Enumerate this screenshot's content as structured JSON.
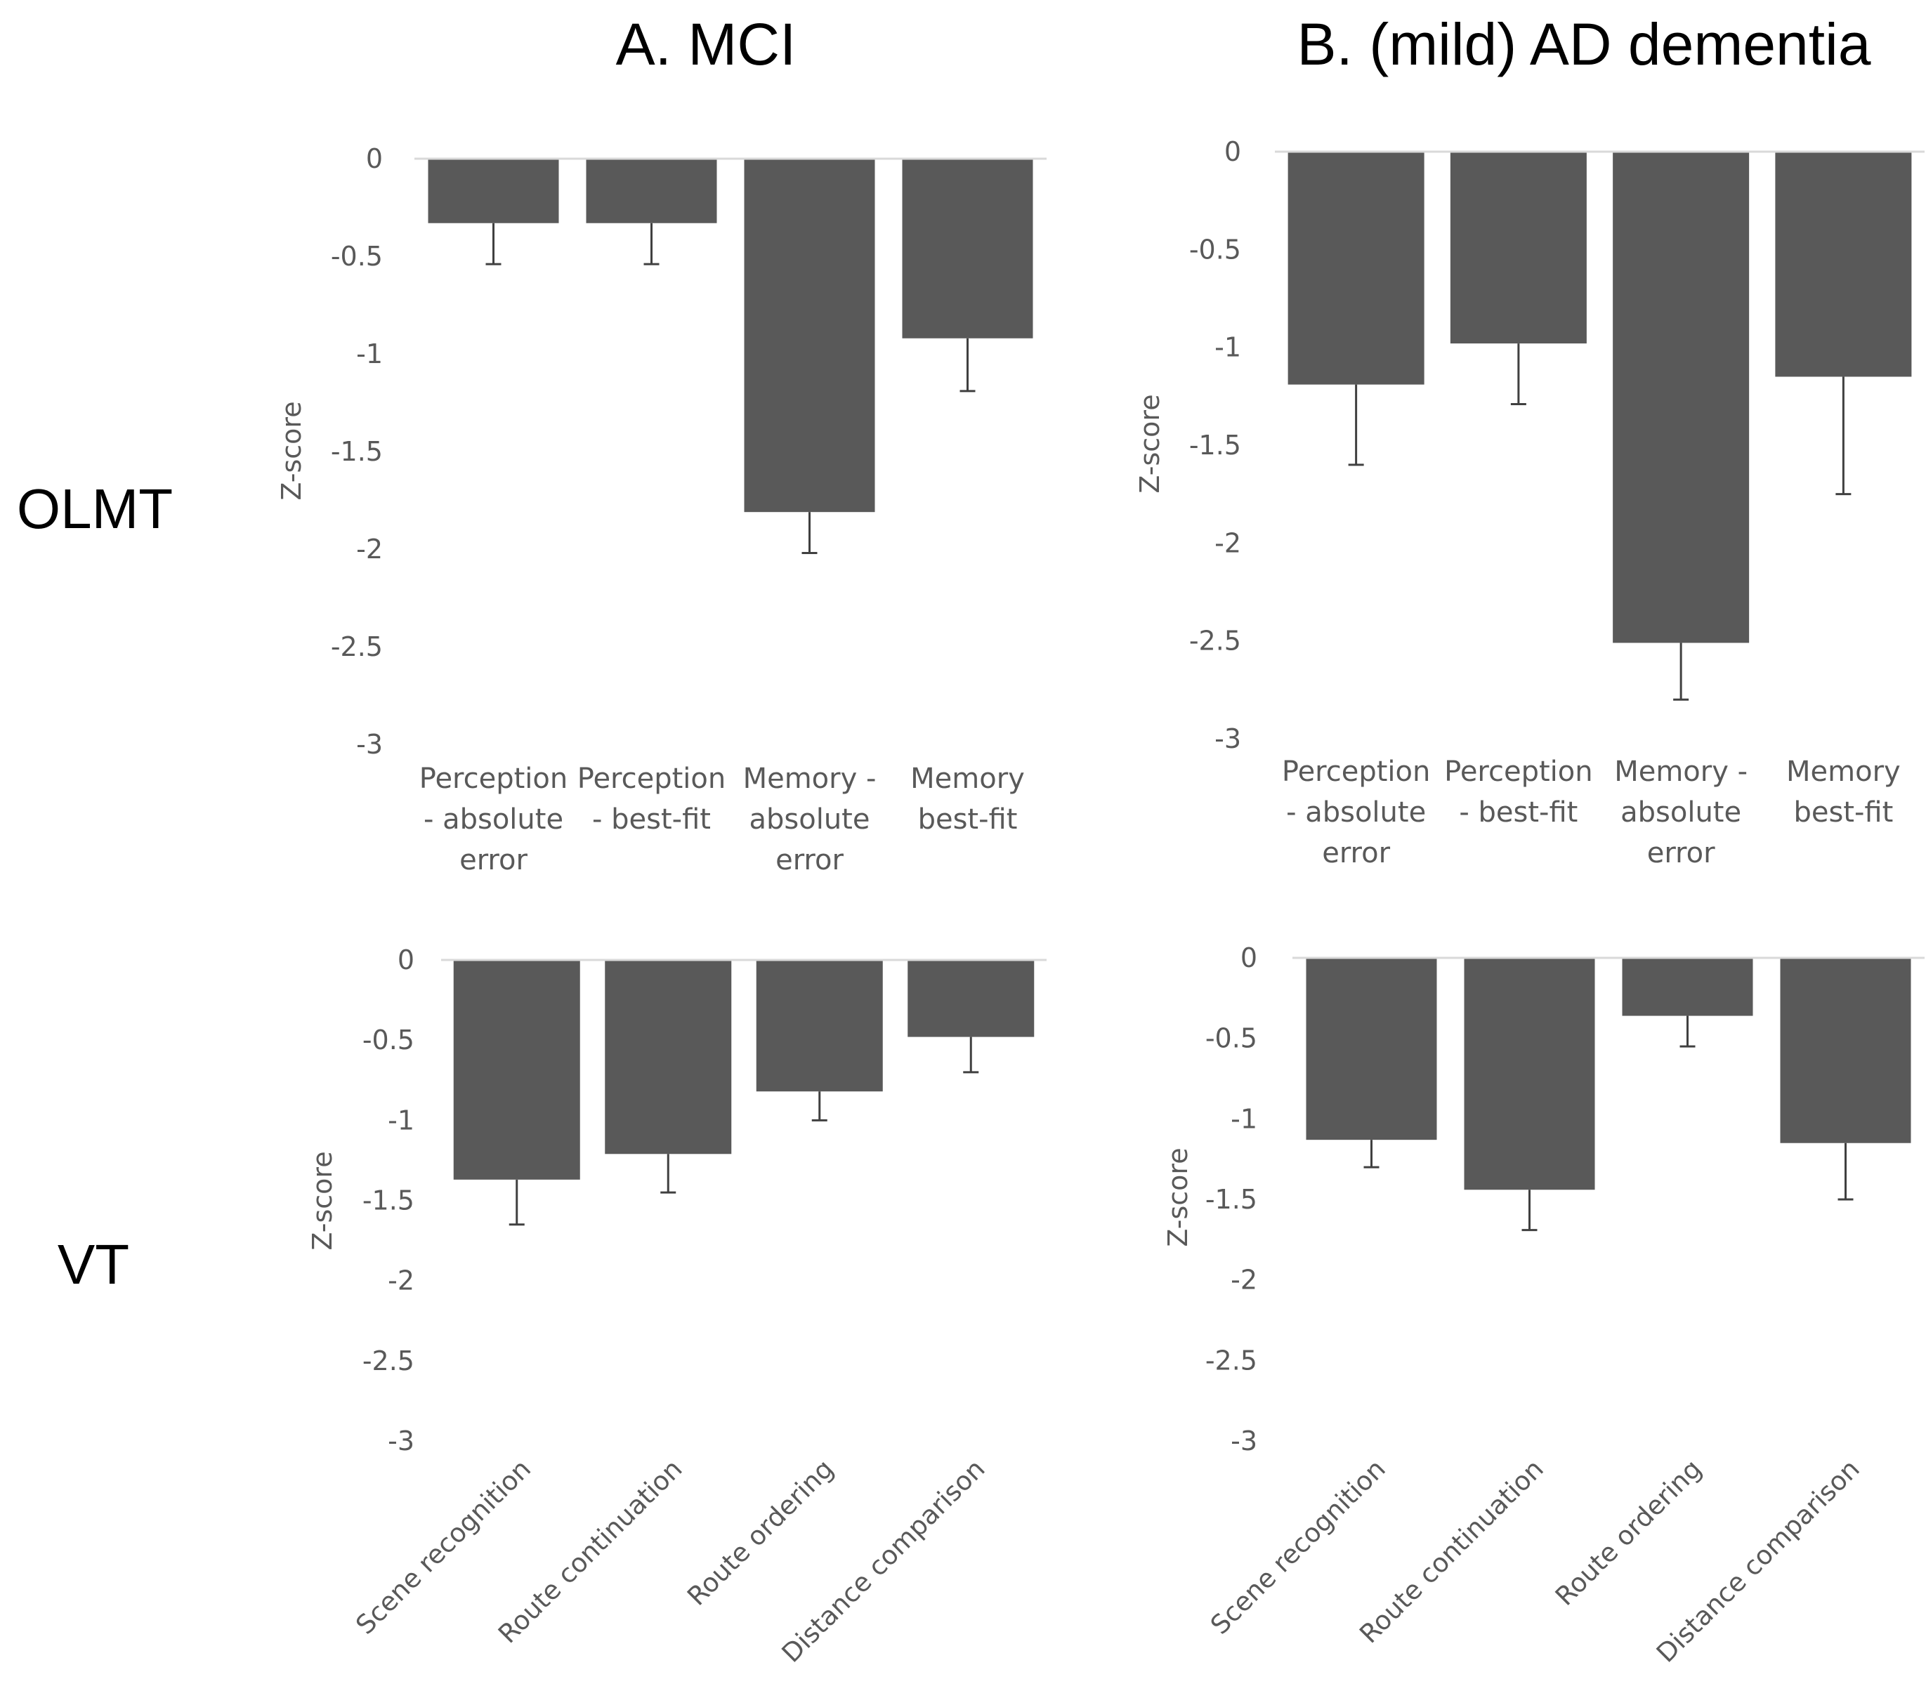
{
  "figure": {
    "col_titles": [
      "A. MCI",
      "B. (mild) AD dementia"
    ],
    "row_labels": [
      "OLMT",
      "VT"
    ]
  },
  "chart_data": [
    {
      "id": "olmt-mci",
      "type": "bar",
      "panel": "A. MCI",
      "row": "OLMT",
      "ylabel": "Z-score",
      "ylim": [
        -3,
        0
      ],
      "yticks": [
        0,
        -0.5,
        -1,
        -1.5,
        -2,
        -2.5,
        -3
      ],
      "ytick_labels": [
        "0",
        "-0.5",
        "-1",
        "-1.5",
        "-2",
        "-2.5",
        "-3"
      ],
      "categories": [
        "Perception - absolute error",
        "Perception - best-fit",
        "Memory - absolute error",
        "Memory best-fit"
      ],
      "category_lines": [
        [
          "Perception",
          "- absolute",
          "error"
        ],
        [
          "Perception",
          "- best-fit"
        ],
        [
          "Memory -",
          "absolute",
          "error"
        ],
        [
          "Memory",
          "best-fit"
        ]
      ],
      "label_style": "horizontal",
      "values": [
        -0.33,
        -0.33,
        -1.81,
        -0.92
      ],
      "error": [
        0.21,
        0.21,
        0.21,
        0.27
      ],
      "bar_color": "#595959"
    },
    {
      "id": "olmt-ad",
      "type": "bar",
      "panel": "B. (mild) AD dementia",
      "row": "OLMT",
      "ylabel": "Z-score",
      "ylim": [
        -3,
        0
      ],
      "yticks": [
        0,
        -0.5,
        -1,
        -1.5,
        -2,
        -2.5,
        -3
      ],
      "ytick_labels": [
        "0",
        "-0.5",
        "-1",
        "-1.5",
        "-2",
        "-2.5",
        "-3"
      ],
      "categories": [
        "Perception - absolute error",
        "Perception - best-fit",
        "Memory - absolute error",
        "Memory best-fit"
      ],
      "category_lines": [
        [
          "Perception",
          "- absolute",
          "error"
        ],
        [
          "Perception",
          "- best-fit"
        ],
        [
          "Memory -",
          "absolute",
          "error"
        ],
        [
          "Memory",
          "best-fit"
        ]
      ],
      "label_style": "horizontal",
      "values": [
        -1.19,
        -0.98,
        -2.51,
        -1.15
      ],
      "error": [
        0.41,
        0.31,
        0.29,
        0.6
      ],
      "bar_color": "#595959"
    },
    {
      "id": "vt-mci",
      "type": "bar",
      "panel": "A. MCI",
      "row": "VT",
      "ylabel": "Z-score",
      "ylim": [
        -3,
        0
      ],
      "yticks": [
        0,
        -0.5,
        -1,
        -1.5,
        -2,
        -2.5,
        -3
      ],
      "ytick_labels": [
        "0",
        "-0.5",
        "-1",
        "-1.5",
        "-2",
        "-2.5",
        "-3"
      ],
      "categories": [
        "Scene recognition",
        "Route continuation",
        "Route ordering",
        "Distance comparison"
      ],
      "category_lines": [
        [
          "Scene recognition"
        ],
        [
          "Route continuation"
        ],
        [
          "Route ordering"
        ],
        [
          "Distance comparison"
        ]
      ],
      "label_style": "rotated",
      "values": [
        -1.37,
        -1.21,
        -0.82,
        -0.48
      ],
      "error": [
        0.28,
        0.24,
        0.18,
        0.22
      ],
      "bar_color": "#595959"
    },
    {
      "id": "vt-ad",
      "type": "bar",
      "panel": "B. (mild) AD dementia",
      "row": "VT",
      "ylabel": "Z-score",
      "ylim": [
        -3,
        0
      ],
      "yticks": [
        0,
        -0.5,
        -1,
        -1.5,
        -2,
        -2.5,
        -3
      ],
      "ytick_labels": [
        "0",
        "-0.5",
        "-1",
        "-1.5",
        "-2",
        "-2.5",
        "-3"
      ],
      "categories": [
        "Scene recognition",
        "Route continuation",
        "Route ordering",
        "Distance comparison"
      ],
      "category_lines": [
        [
          "Scene recognition"
        ],
        [
          "Route continuation"
        ],
        [
          "Route ordering"
        ],
        [
          "Distance comparison"
        ]
      ],
      "label_style": "rotated",
      "values": [
        -1.13,
        -1.44,
        -0.36,
        -1.15
      ],
      "error": [
        0.17,
        0.25,
        0.19,
        0.35
      ],
      "bar_color": "#595959"
    }
  ]
}
